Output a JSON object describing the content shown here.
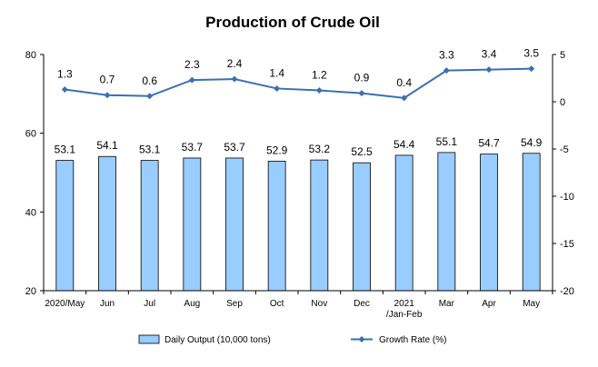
{
  "chart_data": {
    "type": "bar",
    "title": "Production of Crude Oil",
    "categories": [
      "2020/May",
      "Jun",
      "Jul",
      "Aug",
      "Sep",
      "Oct",
      "Nov",
      "Dec",
      "2021/Jan-Feb",
      "Mar",
      "Apr",
      "May"
    ],
    "category_lines": [
      [
        "2020/May"
      ],
      [
        "Jun"
      ],
      [
        "Jul"
      ],
      [
        "Aug"
      ],
      [
        "Sep"
      ],
      [
        "Oct"
      ],
      [
        "Nov"
      ],
      [
        "Dec"
      ],
      [
        "2021",
        "/Jan-Feb"
      ],
      [
        "Mar"
      ],
      [
        "Apr"
      ],
      [
        "May"
      ]
    ],
    "series": [
      {
        "name": "Daily Output (10,000 tons)",
        "type": "bar",
        "axis": "left",
        "color": "#99ccff",
        "stroke": "#000000",
        "values": [
          53.1,
          54.1,
          53.1,
          53.7,
          53.7,
          52.9,
          53.2,
          52.5,
          54.4,
          55.1,
          54.7,
          54.9
        ]
      },
      {
        "name": "Growth Rate (%)",
        "type": "line",
        "axis": "right",
        "color": "#3a6fb5",
        "values": [
          1.3,
          0.7,
          0.6,
          2.3,
          2.4,
          1.4,
          1.2,
          0.9,
          0.4,
          3.3,
          3.4,
          3.5
        ]
      }
    ],
    "y_left": {
      "min": 20,
      "max": 80,
      "ticks": [
        20,
        40,
        60,
        80
      ]
    },
    "y_right": {
      "min": -20,
      "max": 5,
      "ticks": [
        5,
        0,
        -5,
        -10,
        -15,
        -20
      ]
    },
    "grid": false,
    "legend": "bottom"
  }
}
